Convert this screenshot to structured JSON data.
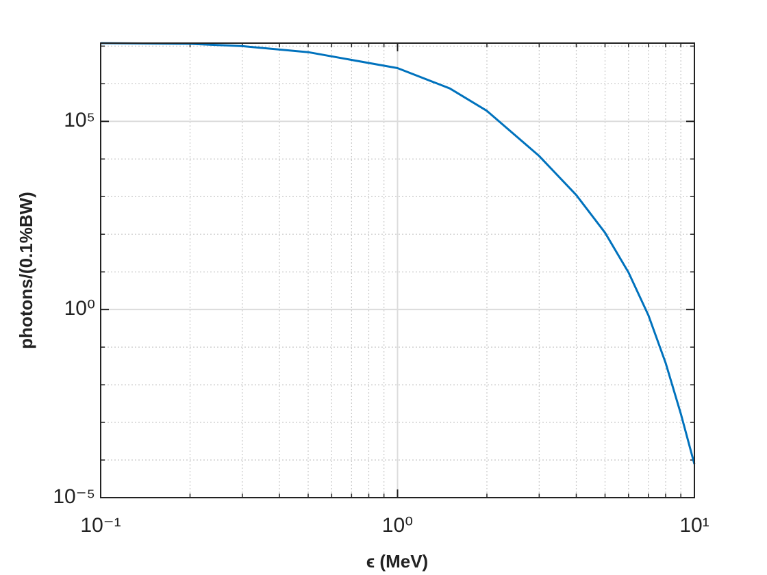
{
  "chart_data": {
    "type": "line",
    "xlabel": "ϵ (MeV)",
    "ylabel": "photons/(0.1%BW)",
    "x": [
      0.1,
      0.2,
      0.3,
      0.5,
      1,
      1.5,
      2,
      3,
      4,
      5,
      6,
      7,
      8,
      9,
      10
    ],
    "values": [
      12000000,
      11500000,
      10000000,
      6900000,
      2600000,
      750000,
      190000,
      12000,
      1100,
      110,
      9.6,
      0.7,
      0.038,
      0.0017,
      7.8e-05
    ],
    "color": "#0072bd",
    "xscale": "log",
    "yscale": "log",
    "xlim": [
      0.1,
      10
    ],
    "ylim": [
      1e-05,
      12000000
    ],
    "xticks": [
      {
        "value": 0.1,
        "label": "10⁻¹"
      },
      {
        "value": 1,
        "label": "10⁰"
      },
      {
        "value": 10,
        "label": "10¹"
      }
    ],
    "yticks": [
      {
        "value": 1e-05,
        "label": "10⁻⁵"
      },
      {
        "value": 1,
        "label": "10⁰"
      },
      {
        "value": 100000,
        "label": "10⁵"
      }
    ],
    "xminorticks": [
      0.2,
      0.3,
      0.4,
      0.5,
      0.6,
      0.7,
      0.8,
      0.9,
      2,
      3,
      4,
      5,
      6,
      7,
      8,
      9
    ],
    "yminorticks": [
      0.0001,
      0.001,
      0.01,
      0.1,
      10,
      100,
      1000,
      10000,
      1000000,
      10000000
    ],
    "grid": true,
    "minorgrid": true
  }
}
